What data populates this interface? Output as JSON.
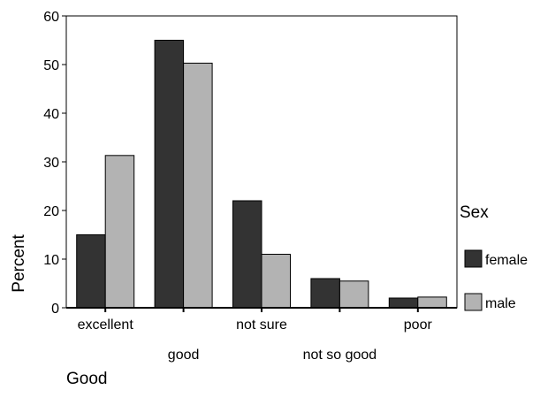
{
  "chart_data": {
    "type": "bar",
    "title": "",
    "xlabel": "Good",
    "ylabel": "Percent",
    "ylim": [
      0,
      60
    ],
    "yticks": [
      0,
      10,
      20,
      30,
      40,
      50,
      60
    ],
    "categories": [
      "excellent",
      "good",
      "not sure",
      "not so good",
      "poor"
    ],
    "series": [
      {
        "name": "female",
        "color": "#333333",
        "values": [
          15,
          55,
          22,
          6,
          2
        ]
      },
      {
        "name": "male",
        "color": "#b3b3b3",
        "values": [
          31.3,
          50.3,
          11,
          5.5,
          2.2
        ]
      }
    ],
    "legend": {
      "title": "Sex",
      "placement": "right"
    },
    "grid": false
  }
}
